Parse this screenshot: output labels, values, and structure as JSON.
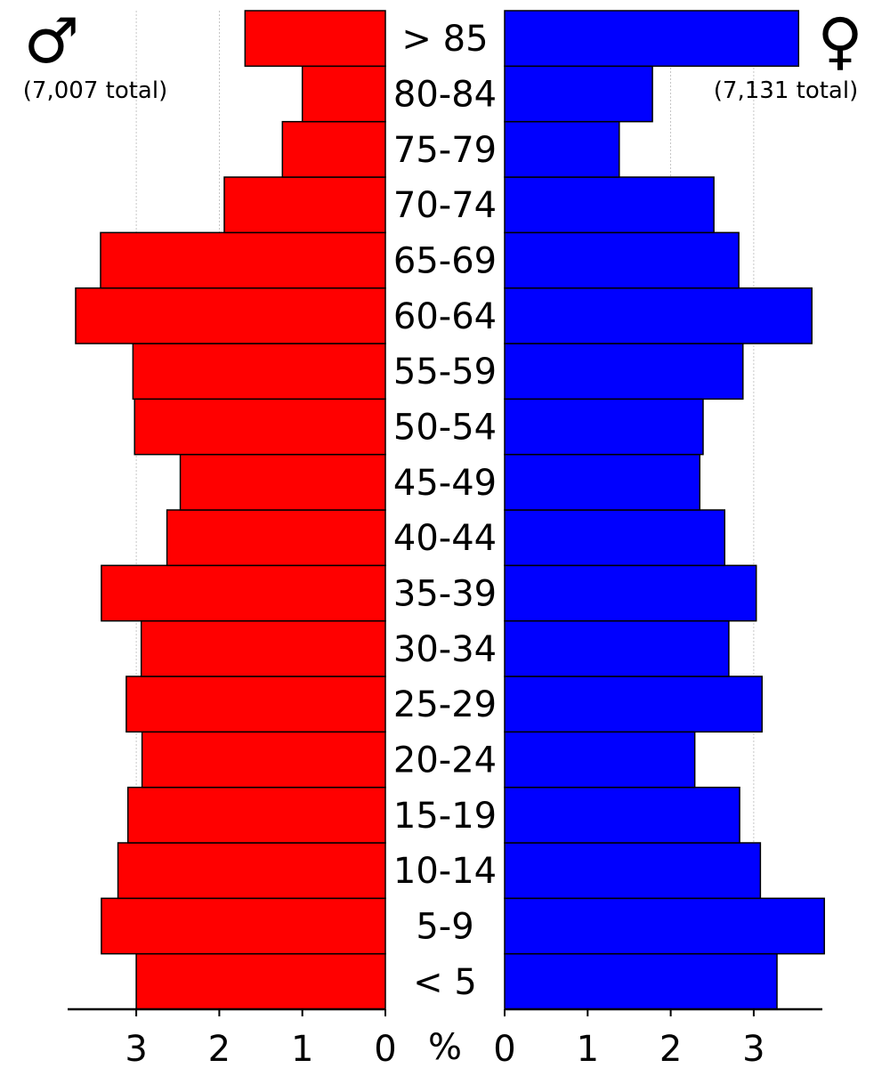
{
  "chart_data": {
    "type": "bar",
    "orientation": "horizontal-population-pyramid",
    "categories": [
      "< 5",
      "5-9",
      "10-14",
      "15-19",
      "20-24",
      "25-29",
      "30-34",
      "35-39",
      "40-44",
      "45-49",
      "50-54",
      "55-59",
      "60-64",
      "65-69",
      "70-74",
      "75-79",
      "80-84",
      "> 85"
    ],
    "series": [
      {
        "name": "male",
        "symbol": "♂",
        "total_label": "(7,007 total)",
        "color": "#ff0000",
        "side": "left",
        "values": [
          3.0,
          3.42,
          3.22,
          3.1,
          2.93,
          3.12,
          2.94,
          3.42,
          2.63,
          2.47,
          3.02,
          3.04,
          3.73,
          3.43,
          1.94,
          1.24,
          1.0,
          1.69
        ]
      },
      {
        "name": "female",
        "symbol": "♀",
        "total_label": "(7,131 total)",
        "color": "#0000ff",
        "side": "right",
        "values": [
          3.28,
          3.85,
          3.08,
          2.83,
          2.29,
          3.1,
          2.7,
          3.03,
          2.65,
          2.35,
          2.39,
          2.87,
          3.7,
          2.82,
          2.52,
          1.38,
          1.78,
          3.54
        ]
      }
    ],
    "left_ticks": [
      "3",
      "2",
      "1",
      "0"
    ],
    "right_ticks": [
      "0",
      "1",
      "2",
      "3"
    ],
    "xlabel": "%",
    "xlim": [
      0,
      3.85
    ],
    "grid": true
  }
}
